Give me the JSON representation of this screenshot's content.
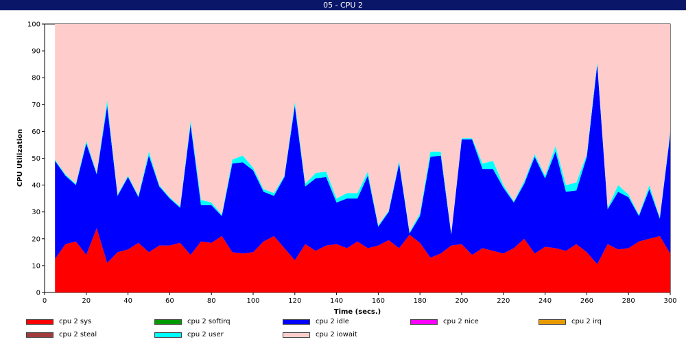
{
  "window": {
    "title": "05 - CPU 2"
  },
  "chart_data": {
    "type": "area",
    "stacked": true,
    "xlabel": "Time (secs.)",
    "ylabel": "CPU Utilization",
    "xlim": [
      0,
      300
    ],
    "ylim": [
      0,
      100
    ],
    "xticks": [
      0,
      20,
      40,
      60,
      80,
      100,
      120,
      140,
      160,
      180,
      200,
      220,
      240,
      260,
      280,
      300
    ],
    "yticks": [
      0,
      10,
      20,
      30,
      40,
      50,
      60,
      70,
      80,
      90,
      100
    ],
    "x": [
      5,
      10,
      15,
      20,
      25,
      30,
      35,
      40,
      45,
      50,
      55,
      60,
      65,
      70,
      75,
      80,
      85,
      90,
      95,
      100,
      105,
      110,
      115,
      120,
      125,
      130,
      135,
      140,
      145,
      150,
      155,
      160,
      165,
      170,
      175,
      180,
      185,
      190,
      195,
      200,
      205,
      210,
      215,
      220,
      225,
      230,
      235,
      240,
      245,
      250,
      255,
      260,
      265,
      270,
      275,
      280,
      285,
      290,
      295,
      300
    ],
    "series": [
      {
        "name": "cpu 2 sys",
        "color": "#ff0000",
        "values": [
          12.5,
          18,
          19,
          14,
          24,
          11,
          15,
          16,
          18.5,
          15,
          17.5,
          17.5,
          18.5,
          14,
          19,
          18.5,
          21,
          15,
          14.5,
          15,
          19,
          21,
          16.5,
          12,
          18,
          15.5,
          17.5,
          18,
          16.5,
          19,
          16.5,
          17.5,
          19.5,
          16.5,
          21.5,
          18.5,
          13,
          14.5,
          17.5,
          18,
          14,
          16.5,
          15.5,
          14.5,
          16.5,
          20,
          14.5,
          17,
          16.5,
          15.5,
          18,
          15,
          10.5,
          18,
          16,
          16.5,
          19,
          20,
          21,
          14.5
        ]
      },
      {
        "name": "cpu 2 softirq",
        "color": "#009900",
        "values": [
          0,
          0,
          0,
          0,
          0,
          0,
          0,
          0,
          0,
          0,
          0,
          0,
          0,
          0,
          0,
          0,
          0,
          0,
          0,
          0,
          0,
          0,
          0,
          0,
          0,
          0,
          0,
          0,
          0,
          0,
          0,
          0,
          0,
          0,
          0,
          0,
          0,
          0,
          0,
          0,
          0,
          0,
          0,
          0,
          0,
          0,
          0,
          0,
          0,
          0,
          0,
          0,
          0,
          0,
          0,
          0,
          0,
          0,
          0,
          0
        ]
      },
      {
        "name": "cpu 2 idle",
        "color": "#0000ff",
        "values": [
          36.5,
          25.5,
          21,
          41.5,
          20,
          58.5,
          21,
          27,
          17,
          36,
          22,
          17.5,
          13,
          48.5,
          13.5,
          14,
          7.5,
          33,
          34,
          30.5,
          18.5,
          15,
          26.5,
          57.5,
          21.5,
          27,
          25.5,
          15.5,
          18.5,
          16,
          27,
          7,
          10.5,
          31.5,
          0.5,
          10,
          37.5,
          36.5,
          4,
          39,
          43,
          29.5,
          30.5,
          24.5,
          17,
          20.5,
          36,
          25.5,
          36,
          22,
          20,
          35.5,
          74.5,
          13,
          21.5,
          19,
          9.5,
          18.5,
          6.5,
          44.5
        ]
      },
      {
        "name": "cpu 2 nice",
        "color": "#ff00ff",
        "values": [
          0,
          0,
          0,
          0,
          0,
          0,
          0,
          0,
          0,
          0,
          0,
          0,
          0,
          0,
          0,
          0,
          0,
          0,
          0,
          0,
          0,
          0,
          0,
          0,
          0,
          0,
          0,
          0,
          0,
          0,
          0,
          0,
          0,
          0,
          0,
          0,
          0,
          0,
          0,
          0,
          0,
          0,
          0,
          0,
          0,
          0,
          0,
          0,
          0,
          0,
          0,
          0,
          0,
          0,
          0,
          0,
          0,
          0,
          0,
          0
        ]
      },
      {
        "name": "cpu 2 irq",
        "color": "#e69a00",
        "values": [
          0,
          0,
          0,
          0,
          0,
          0,
          0,
          0,
          0,
          0,
          0,
          0,
          0,
          0,
          0,
          0,
          0,
          0,
          0,
          0,
          0,
          0,
          0,
          0,
          0,
          0,
          0,
          0,
          0,
          0,
          0,
          0,
          0,
          0,
          0,
          0,
          0,
          0,
          0,
          0,
          0,
          0,
          0,
          0,
          0,
          0,
          0,
          0,
          0,
          0,
          0,
          0,
          0,
          0,
          0,
          0,
          0,
          0,
          0,
          0
        ]
      },
      {
        "name": "cpu 2 steal",
        "color": "#a03c3c",
        "values": [
          0,
          0,
          0,
          0,
          0,
          0,
          0,
          0,
          0,
          0,
          0,
          0,
          0,
          0,
          0,
          0,
          0,
          0,
          0,
          0,
          0,
          0,
          0,
          0,
          0,
          0,
          0,
          0,
          0,
          0,
          0,
          0,
          0,
          0,
          0,
          0,
          0,
          0,
          0,
          0,
          0,
          0,
          0,
          0,
          0,
          0,
          0,
          0,
          0,
          0,
          0,
          0,
          0,
          0,
          0,
          0,
          0,
          0,
          0,
          0
        ]
      },
      {
        "name": "cpu 2 user",
        "color": "#00ffff",
        "values": [
          0.5,
          0.5,
          0.5,
          1,
          0.5,
          2,
          0.5,
          0.5,
          0.5,
          1.5,
          0.5,
          0.5,
          0.5,
          1.5,
          2,
          1,
          0.5,
          1.5,
          2.5,
          1,
          1,
          1,
          0.5,
          1.5,
          1,
          2,
          2,
          1.5,
          2,
          2,
          1.5,
          0.5,
          0.5,
          1,
          0.5,
          1,
          2,
          1.5,
          0.5,
          0.5,
          0.5,
          2,
          3,
          1,
          0.5,
          1,
          1,
          1,
          2,
          2.5,
          3,
          1,
          1,
          0.5,
          2.5,
          1,
          0.5,
          1.5,
          0.5,
          1
        ]
      },
      {
        "name": "cpu 2 iowait",
        "color": "#ffcccc",
        "values": [
          50.5,
          56,
          59.5,
          43.5,
          55.5,
          28.5,
          63.5,
          56.5,
          64,
          47.5,
          60,
          64.5,
          68,
          36,
          65.5,
          66.5,
          71,
          50.5,
          49,
          53.5,
          61.5,
          63,
          56.5,
          29,
          59.5,
          55.5,
          55,
          65,
          63,
          63,
          55,
          75,
          69.5,
          51,
          77.5,
          70.5,
          47.5,
          47.5,
          78,
          42.5,
          42.5,
          52,
          51,
          60,
          66,
          58.5,
          48.5,
          56.5,
          45.5,
          60,
          59,
          48.5,
          14,
          68.5,
          60,
          63.5,
          71,
          60,
          72,
          40
        ]
      }
    ]
  },
  "legend": {
    "items": [
      {
        "label": "cpu 2 sys",
        "color": "#ff0000"
      },
      {
        "label": "cpu 2 softirq",
        "color": "#009900"
      },
      {
        "label": "cpu 2 idle",
        "color": "#0000ff"
      },
      {
        "label": "cpu 2 nice",
        "color": "#ff00ff"
      },
      {
        "label": "cpu 2 irq",
        "color": "#e69a00"
      },
      {
        "label": "cpu 2 steal",
        "color": "#a03c3c"
      },
      {
        "label": "cpu 2 user",
        "color": "#00ffff"
      },
      {
        "label": "cpu 2 iowait",
        "color": "#ffcccc"
      }
    ]
  }
}
